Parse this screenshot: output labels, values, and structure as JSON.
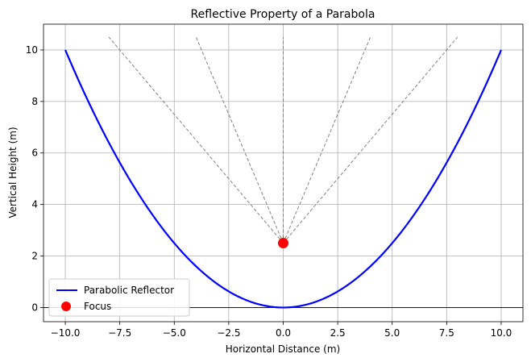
{
  "chart_data": {
    "type": "line",
    "title": "Reflective Property of a Parabola",
    "xlabel": "Horizontal Distance (m)",
    "ylabel": "Vertical Height (m)",
    "xlim": [
      -11,
      11
    ],
    "ylim": [
      -0.55,
      11.0
    ],
    "grid": true,
    "legend_position": "lower-left",
    "x_ticks": [
      -10,
      -7.5,
      -5,
      -2.5,
      0,
      2.5,
      5,
      7.5,
      10
    ],
    "x_tick_labels": [
      "−10.0",
      "−7.5",
      "−5.0",
      "−2.5",
      "0.0",
      "2.5",
      "5.0",
      "7.5",
      "10.0"
    ],
    "y_ticks": [
      0,
      2,
      4,
      6,
      8,
      10
    ],
    "y_tick_labels": [
      "0",
      "2",
      "4",
      "6",
      "8",
      "10"
    ],
    "series": [
      {
        "name": "Parabolic Reflector",
        "kind": "curve",
        "equation": "y = x^2 / 10",
        "x_range": [
          -10,
          10
        ],
        "color": "#0000ff"
      },
      {
        "name": "Focus",
        "kind": "point",
        "x": 0,
        "y": 2.5,
        "color": "#ff0000"
      }
    ],
    "reflected_rays": [
      {
        "from": [
          0,
          2.5
        ],
        "to": [
          -8,
          10.5
        ]
      },
      {
        "from": [
          0,
          2.5
        ],
        "to": [
          -4,
          10.5
        ]
      },
      {
        "from": [
          0,
          2.5
        ],
        "to": [
          0,
          10.5
        ]
      },
      {
        "from": [
          0,
          2.5
        ],
        "to": [
          4,
          10.5
        ]
      },
      {
        "from": [
          0,
          2.5
        ],
        "to": [
          8,
          10.5
        ]
      }
    ],
    "reference_lines": [
      {
        "axis": "y",
        "value": 0,
        "color": "#000000"
      }
    ],
    "colors": {
      "reflector": "#0000ff",
      "focus": "#ff0000",
      "rays": "#808080",
      "grid": "#b0b0b0"
    }
  }
}
